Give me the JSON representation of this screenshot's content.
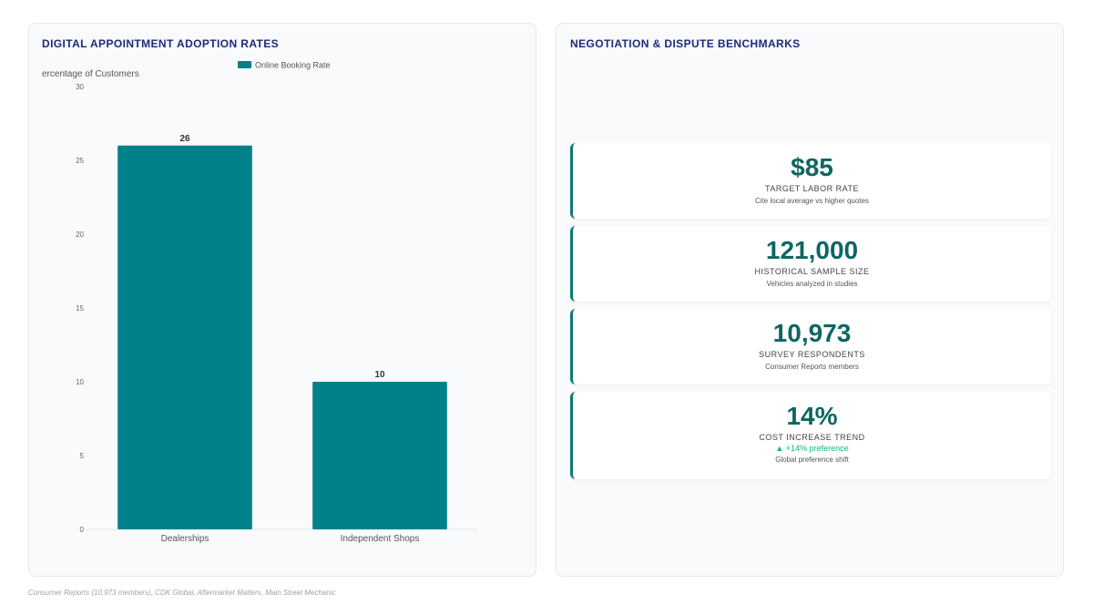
{
  "chart_panel": {
    "title": "DIGITAL APPOINTMENT ADOPTION RATES"
  },
  "chart_data": {
    "type": "bar",
    "categories": [
      "Dealerships",
      "Independent Shops"
    ],
    "series": [
      {
        "name": "Online Booking Rate",
        "values": [
          26,
          10
        ],
        "color": "#00818a"
      }
    ],
    "ylabel": "ercentage of Customers",
    "ylim": [
      0,
      30
    ],
    "yticks": [
      0,
      5,
      10,
      15,
      20,
      25,
      30
    ],
    "data_labels": [
      "26",
      "10"
    ],
    "legend_position": "top-center",
    "grid": false
  },
  "bench_panel": {
    "title": "NEGOTIATION & DISPUTE BENCHMARKS",
    "cards": [
      {
        "value": "$85",
        "label": "TARGET LABOR RATE",
        "sub": "Cite local average vs higher quotes"
      },
      {
        "value": "121,000",
        "label": "HISTORICAL SAMPLE SIZE",
        "sub": "Vehicles analyzed in studies"
      },
      {
        "value": "10,973",
        "label": "SURVEY RESPONDENTS",
        "sub": "Consumer Reports members"
      },
      {
        "value": "14%",
        "label": "COST INCREASE TREND",
        "trend": "▲ +14% preference",
        "sub": "Global preference shift"
      }
    ]
  },
  "footer": {
    "sources": "Consumer Reports (10,973 members), CDK Global, Aftermarket Matters, Main Street Mechanic"
  },
  "colors": {
    "accent": "#0d7a73",
    "bar": "#00818a",
    "title": "#1e2a78",
    "trend_up": "#10b981"
  }
}
